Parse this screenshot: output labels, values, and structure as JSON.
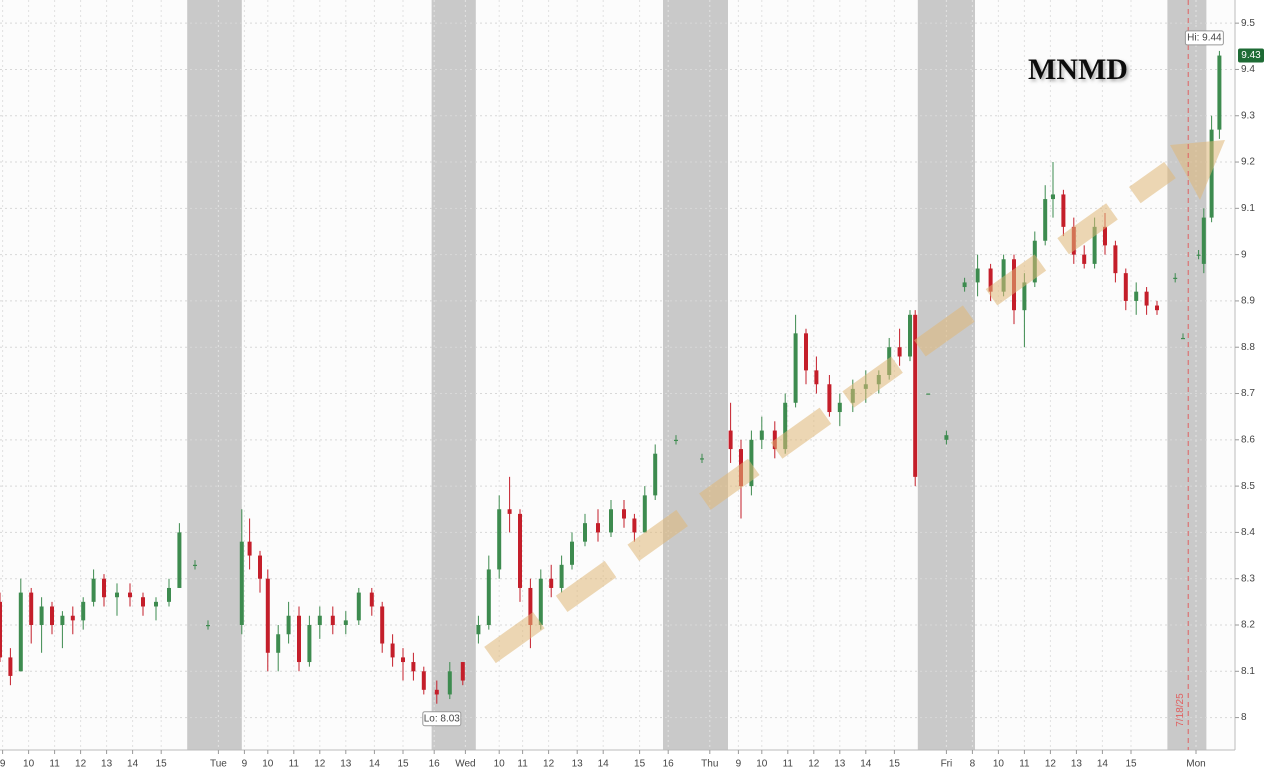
{
  "chart_data": {
    "type": "candlestick",
    "title": "MNMD",
    "xlim": [
      0,
      47.5
    ],
    "ylim": [
      7.93,
      9.55
    ],
    "yticks": [
      8,
      8.1,
      8.2,
      8.3,
      8.4,
      8.5,
      8.6,
      8.7,
      8.8,
      8.9,
      9,
      9.1,
      9.2,
      9.3,
      9.4,
      9.5
    ],
    "xticks": [
      {
        "value": 0.1,
        "label": "9"
      },
      {
        "value": 1.1,
        "label": "10"
      },
      {
        "value": 2.1,
        "label": "11"
      },
      {
        "value": 3.1,
        "label": "12"
      },
      {
        "value": 4.1,
        "label": "13"
      },
      {
        "value": 5.1,
        "label": "14"
      },
      {
        "value": 6.2,
        "label": "15"
      },
      {
        "value": 8.4,
        "label": "Tue"
      },
      {
        "value": 9.4,
        "label": "9"
      },
      {
        "value": 10.3,
        "label": "10"
      },
      {
        "value": 11.3,
        "label": "11"
      },
      {
        "value": 12.3,
        "label": "12"
      },
      {
        "value": 13.3,
        "label": "13"
      },
      {
        "value": 14.4,
        "label": "14"
      },
      {
        "value": 15.5,
        "label": "15"
      },
      {
        "value": 16.7,
        "label": "16"
      },
      {
        "value": 17.9,
        "label": "Wed"
      },
      {
        "value": 19.2,
        "label": "10"
      },
      {
        "value": 20.1,
        "label": "11"
      },
      {
        "value": 21.1,
        "label": "12"
      },
      {
        "value": 22.2,
        "label": "13"
      },
      {
        "value": 23.2,
        "label": "14"
      },
      {
        "value": 24.6,
        "label": "15"
      },
      {
        "value": 25.7,
        "label": "16"
      },
      {
        "value": 27.3,
        "label": "Thu"
      },
      {
        "value": 28.4,
        "label": "9"
      },
      {
        "value": 29.3,
        "label": "10"
      },
      {
        "value": 30.3,
        "label": "11"
      },
      {
        "value": 31.3,
        "label": "12"
      },
      {
        "value": 32.3,
        "label": "13"
      },
      {
        "value": 33.3,
        "label": "14"
      },
      {
        "value": 34.4,
        "label": "15"
      },
      {
        "value": 36.4,
        "label": "Fri"
      },
      {
        "value": 37.4,
        "label": "8"
      },
      {
        "value": 38.4,
        "label": "10"
      },
      {
        "value": 39.4,
        "label": "11"
      },
      {
        "value": 40.4,
        "label": "12"
      },
      {
        "value": 41.4,
        "label": "13"
      },
      {
        "value": 42.4,
        "label": "14"
      },
      {
        "value": 43.5,
        "label": "15"
      },
      {
        "value": 46.0,
        "label": "Mon"
      }
    ],
    "grid": true,
    "shaded": [
      [
        7.2,
        9.3
      ],
      [
        16.6,
        18.3
      ],
      [
        25.5,
        28.0
      ],
      [
        35.3,
        37.5
      ],
      [
        44.9,
        46.4
      ]
    ],
    "up_color": "#3d8b4f",
    "down_color": "#c41e2a",
    "candles": {
      "x": [
        0.0,
        0.4,
        0.8,
        1.2,
        1.6,
        2.0,
        2.4,
        2.8,
        3.2,
        3.6,
        4.0,
        4.5,
        5.0,
        5.5,
        6.0,
        6.5,
        6.9,
        7.5,
        8.0,
        9.3,
        9.6,
        10.0,
        10.3,
        10.7,
        11.1,
        11.5,
        11.9,
        12.3,
        12.8,
        13.3,
        13.8,
        14.3,
        14.7,
        15.1,
        15.5,
        15.9,
        16.3,
        16.8,
        17.3,
        17.8,
        18.4,
        18.8,
        19.2,
        19.6,
        20.0,
        20.4,
        20.8,
        21.2,
        21.6,
        22.0,
        22.5,
        23.0,
        23.5,
        24.0,
        24.4,
        24.8,
        25.2,
        26.0,
        27.0,
        28.1,
        28.5,
        28.9,
        29.3,
        29.8,
        30.2,
        30.6,
        31.0,
        31.4,
        31.9,
        32.3,
        32.8,
        33.3,
        33.8,
        34.2,
        34.6,
        35.0,
        35.2,
        35.7,
        36.4,
        37.1,
        37.6,
        38.1,
        38.6,
        39.0,
        39.4,
        39.8,
        40.2,
        40.5,
        40.9,
        41.3,
        41.7,
        42.1,
        42.5,
        42.9,
        43.3,
        43.7,
        44.1,
        44.5,
        45.2,
        45.5,
        46.1,
        46.3,
        46.6,
        46.9
      ],
      "open": [
        8.25,
        8.13,
        8.1,
        8.27,
        8.2,
        8.24,
        8.2,
        8.22,
        8.21,
        8.25,
        8.3,
        8.26,
        8.27,
        8.26,
        8.24,
        8.25,
        8.28,
        8.33,
        8.2,
        8.2,
        8.38,
        8.35,
        8.3,
        8.14,
        8.18,
        8.22,
        8.12,
        8.2,
        8.22,
        8.2,
        8.21,
        8.27,
        8.24,
        8.16,
        8.13,
        8.12,
        8.1,
        8.06,
        8.05,
        8.12,
        8.18,
        8.2,
        8.32,
        8.45,
        8.44,
        8.28,
        8.2,
        8.3,
        8.28,
        8.33,
        8.38,
        8.42,
        8.4,
        8.45,
        8.43,
        8.4,
        8.48,
        8.6,
        8.56,
        8.62,
        8.58,
        8.5,
        8.6,
        8.62,
        8.58,
        8.68,
        8.83,
        8.75,
        8.72,
        8.66,
        8.68,
        8.71,
        8.72,
        8.74,
        8.8,
        8.78,
        8.87,
        8.7,
        8.6,
        8.93,
        8.94,
        8.97,
        8.92,
        8.99,
        8.88,
        8.94,
        9.03,
        9.12,
        9.13,
        9.06,
        9.0,
        8.98,
        9.06,
        9.02,
        8.96,
        8.9,
        8.92,
        8.89,
        8.95,
        8.82,
        9.0,
        8.98,
        9.08,
        9.27
      ],
      "high": [
        8.27,
        8.15,
        8.3,
        8.28,
        8.26,
        8.25,
        8.23,
        8.24,
        8.26,
        8.32,
        8.31,
        8.29,
        8.29,
        8.27,
        8.26,
        8.3,
        8.42,
        8.34,
        8.21,
        8.45,
        8.43,
        8.36,
        8.32,
        8.2,
        8.25,
        8.24,
        8.22,
        8.24,
        8.24,
        8.23,
        8.28,
        8.28,
        8.25,
        8.18,
        8.15,
        8.14,
        8.11,
        8.08,
        8.12,
        8.12,
        8.22,
        8.35,
        8.48,
        8.52,
        8.45,
        8.3,
        8.32,
        8.33,
        8.35,
        8.4,
        8.44,
        8.45,
        8.47,
        8.47,
        8.44,
        8.5,
        8.59,
        8.61,
        8.57,
        8.68,
        8.6,
        8.62,
        8.65,
        8.64,
        8.7,
        8.87,
        8.84,
        8.78,
        8.74,
        8.7,
        8.73,
        8.75,
        8.75,
        8.82,
        8.84,
        8.88,
        8.88,
        8.7,
        8.62,
        8.95,
        9.0,
        8.98,
        9.0,
        9.0,
        8.96,
        9.05,
        9.15,
        9.2,
        9.14,
        9.08,
        9.02,
        9.08,
        9.09,
        9.03,
        8.97,
        8.94,
        8.93,
        8.9,
        8.96,
        8.83,
        9.01,
        9.1,
        9.3,
        9.44
      ],
      "low": [
        8.12,
        8.07,
        8.1,
        8.16,
        8.14,
        8.18,
        8.15,
        8.18,
        8.19,
        8.24,
        8.24,
        8.22,
        8.24,
        8.22,
        8.21,
        8.24,
        8.28,
        8.32,
        8.19,
        8.18,
        8.32,
        8.27,
        8.1,
        8.1,
        8.16,
        8.1,
        8.11,
        8.17,
        8.18,
        8.18,
        8.2,
        8.22,
        8.14,
        8.11,
        8.08,
        8.08,
        8.05,
        8.03,
        8.04,
        8.07,
        8.16,
        8.19,
        8.3,
        8.4,
        8.25,
        8.15,
        8.19,
        8.26,
        8.27,
        8.32,
        8.37,
        8.38,
        8.39,
        8.41,
        8.38,
        8.4,
        8.47,
        8.59,
        8.55,
        8.55,
        8.43,
        8.48,
        8.58,
        8.56,
        8.57,
        8.67,
        8.72,
        8.7,
        8.65,
        8.63,
        8.66,
        8.68,
        8.7,
        8.73,
        8.76,
        8.77,
        8.5,
        8.7,
        8.59,
        8.92,
        8.91,
        8.9,
        8.91,
        8.85,
        8.8,
        8.93,
        9.02,
        9.08,
        9.04,
        8.98,
        8.97,
        8.97,
        9.0,
        8.94,
        8.88,
        8.87,
        8.87,
        8.87,
        8.94,
        8.82,
        8.99,
        8.96,
        9.07,
        9.25
      ],
      "close": [
        8.13,
        8.09,
        8.27,
        8.2,
        8.24,
        8.2,
        8.22,
        8.21,
        8.25,
        8.3,
        8.26,
        8.27,
        8.26,
        8.24,
        8.25,
        8.28,
        8.4,
        8.33,
        8.2,
        8.38,
        8.35,
        8.3,
        8.14,
        8.18,
        8.22,
        8.12,
        8.2,
        8.22,
        8.2,
        8.21,
        8.27,
        8.24,
        8.16,
        8.13,
        8.12,
        8.1,
        8.06,
        8.05,
        8.1,
        8.08,
        8.2,
        8.32,
        8.45,
        8.44,
        8.28,
        8.2,
        8.3,
        8.28,
        8.33,
        8.38,
        8.42,
        8.4,
        8.45,
        8.43,
        8.4,
        8.48,
        8.57,
        8.6,
        8.56,
        8.58,
        8.5,
        8.6,
        8.62,
        8.58,
        8.68,
        8.83,
        8.75,
        8.72,
        8.66,
        8.68,
        8.71,
        8.72,
        8.74,
        8.8,
        8.78,
        8.87,
        8.52,
        8.7,
        8.61,
        8.94,
        8.97,
        8.92,
        8.99,
        8.88,
        8.94,
        9.03,
        9.12,
        9.13,
        9.06,
        9.0,
        8.98,
        9.06,
        9.02,
        8.96,
        8.9,
        8.92,
        8.89,
        8.88,
        8.95,
        8.82,
        9.0,
        9.08,
        9.27,
        9.43
      ]
    },
    "hi": {
      "label": "Hi: 9.44",
      "value": 9.44,
      "x": 46.9
    },
    "lo": {
      "label": "Lo: 8.03",
      "value": 8.03,
      "x": 16.8
    },
    "last": 9.43,
    "date_marker": {
      "x": 45.7,
      "label": "7/18/25"
    }
  }
}
